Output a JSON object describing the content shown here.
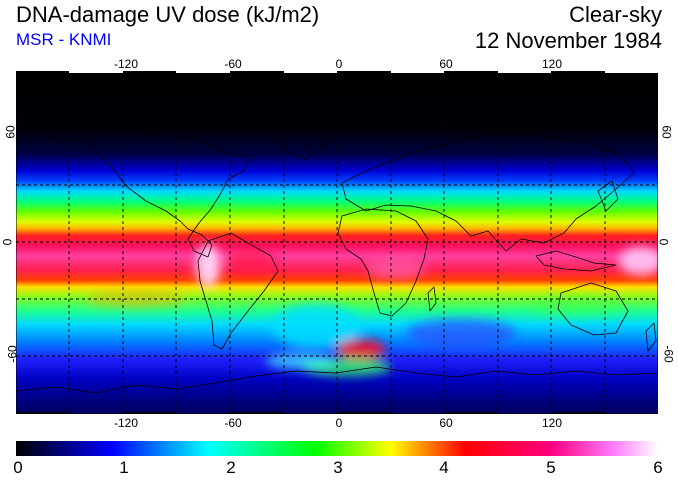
{
  "header": {
    "title": "DNA-damage UV dose (kJ/m2)",
    "subtitle": "MSR - KNMI",
    "title_right": "Clear-sky",
    "date": "12 November 1984"
  },
  "colors": {
    "subtitle": "#0000ff",
    "coastline": "#000000",
    "grid": "#000000"
  },
  "map": {
    "lon_ticks": [
      "-120",
      "-60",
      "0",
      "60",
      "120"
    ],
    "lat_ticks": [
      "60",
      "0",
      "-60"
    ],
    "lon_range": [
      -180,
      180
    ],
    "lat_range": [
      -90,
      90
    ],
    "grid": "dashed every 30 degrees"
  },
  "colorbar": {
    "labels": [
      "0",
      "1",
      "2",
      "3",
      "4",
      "5",
      "6"
    ],
    "range": [
      0,
      6
    ],
    "stops": [
      {
        "v": 0,
        "c": "#000000"
      },
      {
        "v": 0.9,
        "c": "#0000ff"
      },
      {
        "v": 1.8,
        "c": "#00ffff"
      },
      {
        "v": 2.8,
        "c": "#00ff00"
      },
      {
        "v": 3.5,
        "c": "#ffff00"
      },
      {
        "v": 4.2,
        "c": "#ff0000"
      },
      {
        "v": 5.0,
        "c": "#ff0080"
      },
      {
        "v": 5.6,
        "c": "#ff80ff"
      },
      {
        "v": 6.0,
        "c": "#ffffff"
      }
    ]
  }
}
